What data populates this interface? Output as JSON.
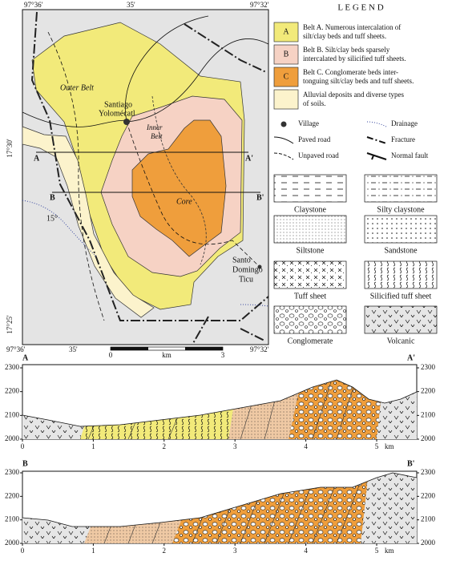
{
  "map": {
    "top_coordinates": [
      "97°36'",
      "35'",
      "97°32'"
    ],
    "bottom_coordinates": [
      "97°36'",
      "35'",
      "97°32'"
    ],
    "left_coordinates": [
      "17°30'",
      "17°25'"
    ],
    "labels": {
      "outer_belt": "Outer Belt",
      "village_1": [
        "Santiago",
        "Yolomécatl"
      ],
      "inner_belt": [
        "Inner",
        "Belt"
      ],
      "core": "Core",
      "village_2": [
        "Santo",
        "Domingo",
        "Ticu"
      ],
      "dip": "15°"
    },
    "section_lines": {
      "a": "A",
      "a_prime": "A'",
      "b": "B",
      "b_prime": "B'"
    },
    "scale_bar": {
      "start": "0",
      "unit": "km",
      "end": "3"
    }
  },
  "legend": {
    "title": "L E G E N D",
    "units": [
      {
        "key": "A",
        "lines": [
          "Belt A. Numerous intercalation of",
          "silt/clay beds and tuff sheets."
        ]
      },
      {
        "key": "B",
        "lines": [
          "Belt B. Silt/clay beds sparsely",
          "intercalated by silicified tuff sheets."
        ]
      },
      {
        "key": "C",
        "lines": [
          "Belt C. Conglomerate beds inter-",
          "tonguing silt/clay beds and tuff sheets."
        ]
      },
      {
        "lines": [
          "Alluvial deposits and diverse types",
          "of soils."
        ]
      }
    ],
    "symbols": [
      "Village",
      "Drainage",
      "Paved road",
      "Fracture",
      "Unpaved road",
      "Normal fault"
    ],
    "lithologies": [
      "Claystone",
      "Silty claystone",
      "Siltstone",
      "Sandstone",
      "Tuff sheet",
      "Silicified tuff sheet",
      "Conglomerate",
      "Volcanic"
    ]
  },
  "sections": [
    {
      "start": "A",
      "end": "A'",
      "yticks": [
        2000,
        2100,
        2200,
        2300
      ],
      "xticks": [
        0,
        1,
        2,
        3,
        4,
        5
      ],
      "x_unit": "km"
    },
    {
      "start": "B",
      "end": "B'",
      "yticks": [
        2000,
        2100,
        2200,
        2300
      ],
      "xticks": [
        0,
        1,
        2,
        3,
        4,
        5
      ],
      "x_unit": "km"
    }
  ]
}
